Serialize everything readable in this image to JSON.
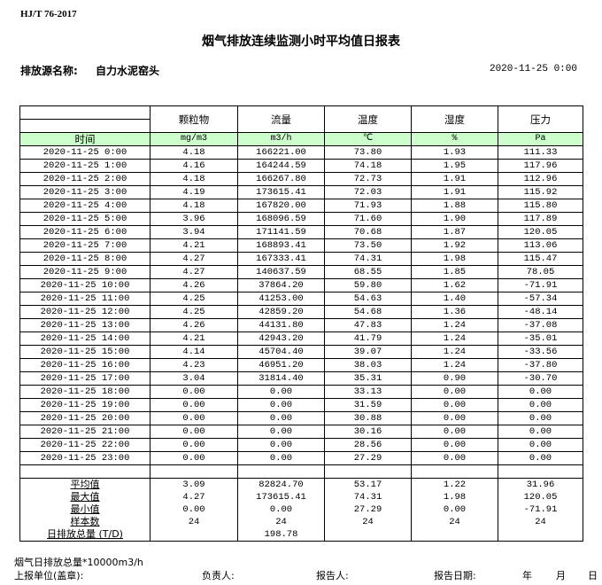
{
  "standard": "HJ/T  76-2017",
  "title": "烟气排放连续监测小时平均值日报表",
  "source_label": "排放源名称:",
  "source_name": "自力水泥窑头",
  "report_datetime": "2020-11-25 0:00",
  "columns": [
    {
      "name": "颗粒物",
      "unit": "mg/m3"
    },
    {
      "name": "流量",
      "unit": "m3/h"
    },
    {
      "name": "温度",
      "unit": "℃"
    },
    {
      "name": "湿度",
      "unit": "%"
    },
    {
      "name": "压力",
      "unit": "Pa"
    }
  ],
  "time_header": "时间",
  "rows": [
    [
      "2020-11-25 0:00",
      "4.18",
      "166221.00",
      "73.80",
      "1.93",
      "111.33"
    ],
    [
      "2020-11-25 1:00",
      "4.16",
      "164244.59",
      "74.18",
      "1.95",
      "117.96"
    ],
    [
      "2020-11-25 2:00",
      "4.18",
      "166267.80",
      "72.73",
      "1.91",
      "112.96"
    ],
    [
      "2020-11-25 3:00",
      "4.19",
      "173615.41",
      "72.03",
      "1.91",
      "115.92"
    ],
    [
      "2020-11-25 4:00",
      "4.18",
      "167820.00",
      "71.93",
      "1.88",
      "115.80"
    ],
    [
      "2020-11-25 5:00",
      "3.96",
      "168096.59",
      "71.60",
      "1.90",
      "117.89"
    ],
    [
      "2020-11-25 6:00",
      "3.94",
      "171141.59",
      "70.68",
      "1.87",
      "120.05"
    ],
    [
      "2020-11-25 7:00",
      "4.21",
      "168893.41",
      "73.50",
      "1.92",
      "113.06"
    ],
    [
      "2020-11-25 8:00",
      "4.27",
      "167333.41",
      "74.31",
      "1.98",
      "115.47"
    ],
    [
      "2020-11-25 9:00",
      "4.27",
      "140637.59",
      "68.55",
      "1.85",
      "78.05"
    ],
    [
      "2020-11-25 10:00",
      "4.26",
      "37864.20",
      "59.80",
      "1.62",
      "-71.91"
    ],
    [
      "2020-11-25 11:00",
      "4.25",
      "41253.00",
      "54.63",
      "1.40",
      "-57.34"
    ],
    [
      "2020-11-25 12:00",
      "4.25",
      "42859.20",
      "54.68",
      "1.36",
      "-48.14"
    ],
    [
      "2020-11-25 13:00",
      "4.26",
      "44131.80",
      "47.83",
      "1.24",
      "-37.08"
    ],
    [
      "2020-11-25 14:00",
      "4.21",
      "42943.20",
      "41.79",
      "1.24",
      "-35.01"
    ],
    [
      "2020-11-25 15:00",
      "4.14",
      "45704.40",
      "39.07",
      "1.24",
      "-33.56"
    ],
    [
      "2020-11-25 16:00",
      "4.23",
      "46951.20",
      "38.03",
      "1.24",
      "-37.80"
    ],
    [
      "2020-11-25 17:00",
      "3.04",
      "31814.40",
      "35.31",
      "0.90",
      "-30.70"
    ],
    [
      "2020-11-25 18:00",
      "0.00",
      "0.00",
      "33.13",
      "0.00",
      "0.00"
    ],
    [
      "2020-11-25 19:00",
      "0.00",
      "0.00",
      "31.59",
      "0.00",
      "0.00"
    ],
    [
      "2020-11-25 20:00",
      "0.00",
      "0.00",
      "30.88",
      "0.00",
      "0.00"
    ],
    [
      "2020-11-25 21:00",
      "0.00",
      "0.00",
      "30.16",
      "0.00",
      "0.00"
    ],
    [
      "2020-11-25 22:00",
      "0.00",
      "0.00",
      "28.56",
      "0.00",
      "0.00"
    ],
    [
      "2020-11-25 23:00",
      "0.00",
      "0.00",
      "27.29",
      "0.00",
      "0.00"
    ]
  ],
  "stats": [
    [
      "平均值",
      "3.09",
      "82824.70",
      "53.17",
      "1.22",
      "31.96"
    ],
    [
      "最大值",
      "4.27",
      "173615.41",
      "74.31",
      "1.98",
      "120.05"
    ],
    [
      "最小值",
      "0.00",
      "0.00",
      "27.29",
      "0.00",
      "-71.91"
    ],
    [
      "样本数",
      "24",
      "24",
      "24",
      "24",
      "24"
    ],
    [
      "日排放总量 (T/D)",
      "",
      "198.78",
      "",
      "",
      ""
    ]
  ],
  "footer": {
    "note": "烟气日排放总量*10000m3/h",
    "unit_label": "上报单位(盖章):",
    "responsible_label": "负责人:",
    "reporter_label": "报告人:",
    "report_date_label": "报告日期:",
    "year": "年",
    "month": "月",
    "day": "日"
  }
}
